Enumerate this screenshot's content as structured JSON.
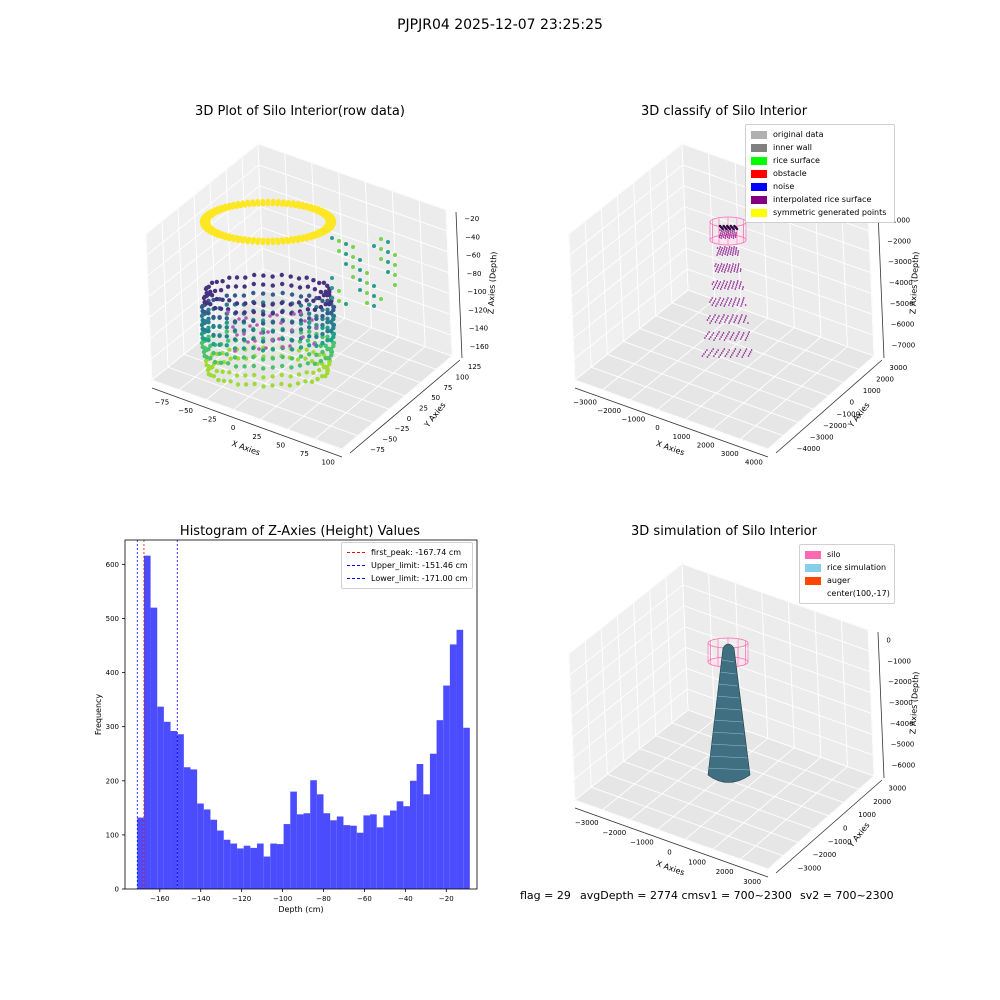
{
  "suptitle": "PJPJR04 2025-12-07 23:25:25",
  "status": {
    "flag": "flag = 29",
    "avg_depth": "avgDepth = 2774 cmsv1 = 700~2300",
    "sv2": "sv2 = 700~2300"
  },
  "plot1": {
    "title": "3D Plot of Silo Interior(row data)",
    "xlabel": "X Axies",
    "ylabel": "Y Axies",
    "zlabel": "Z Axies (Depth)",
    "xticks": [
      "−75",
      "−50",
      "−25",
      "0",
      "25",
      "50",
      "75",
      "100"
    ],
    "yticks": [
      "−75",
      "−50",
      "−25",
      "0",
      "25",
      "50",
      "75",
      "100",
      "125"
    ],
    "zticks": [
      "−20",
      "−40",
      "−60",
      "−80",
      "−100",
      "−120",
      "−140",
      "−160"
    ]
  },
  "plot2": {
    "title": "3D classify of Silo Interior",
    "xlabel": "X Axies",
    "ylabel": "Y Axies",
    "zlabel": "Z Axies (Depth)",
    "xticks": [
      "−3000",
      "−2000",
      "−1000",
      "0",
      "1000",
      "2000",
      "3000",
      "4000"
    ],
    "yticks": [
      "−4000",
      "−3000",
      "−2000",
      "−1000",
      "0",
      "1000",
      "2000",
      "3000"
    ],
    "zticks": [
      "−1000",
      "−2000",
      "−3000",
      "−4000",
      "−5000",
      "−6000",
      "−7000"
    ],
    "legend": [
      {
        "label": "original data",
        "color": "#b0b0b0"
      },
      {
        "label": "inner wall",
        "color": "#808080"
      },
      {
        "label": "rice surface",
        "color": "#00ff00"
      },
      {
        "label": "obstacle",
        "color": "#ff0000"
      },
      {
        "label": "noise",
        "color": "#0000ff"
      },
      {
        "label": "interpolated rice surface",
        "color": "#800080"
      },
      {
        "label": "symmetric generated points",
        "color": "#ffff00"
      }
    ]
  },
  "plot3": {
    "title": "3D simulation of Silo Interior",
    "xlabel": "X Axies",
    "ylabel": "Y Axies",
    "zlabel": "Z Axies (Depth)",
    "xticks": [
      "−3000",
      "−2000",
      "−1000",
      "0",
      "1000",
      "2000",
      "3000"
    ],
    "yticks": [
      "−3000",
      "−2000",
      "−1000",
      "0",
      "1000",
      "2000",
      "3000"
    ],
    "zticks": [
      "0",
      "−1000",
      "−2000",
      "−3000",
      "−4000",
      "−5000",
      "−6000"
    ],
    "legend": [
      {
        "label": "silo",
        "color": "#ff69b4"
      },
      {
        "label": "rice simulation",
        "color": "#87ceeb"
      },
      {
        "label": "auger",
        "color": "#ff4500"
      },
      {
        "label": "center(100,-17)",
        "color": ""
      }
    ]
  },
  "chart_data": {
    "type": "bar",
    "title": "Histogram of Z-Axies (Height) Values",
    "xlabel": "Depth (cm)",
    "ylabel": "Frequency",
    "xlim": [
      -177,
      -5
    ],
    "ylim": [
      0,
      645
    ],
    "xticks": [
      -160,
      -140,
      -120,
      -100,
      -80,
      -60,
      -40,
      -20
    ],
    "yticks": [
      0,
      100,
      200,
      300,
      400,
      500,
      600
    ],
    "bin_start": -171.0,
    "bin_width": 3.25,
    "values": [
      132,
      616,
      520,
      337,
      309,
      292,
      286,
      225,
      221,
      158,
      147,
      128,
      108,
      91,
      84,
      75,
      80,
      76,
      84,
      60,
      84,
      83,
      120,
      180,
      138,
      140,
      201,
      175,
      140,
      127,
      134,
      118,
      117,
      104,
      136,
      138,
      114,
      136,
      145,
      162,
      153,
      200,
      231,
      175,
      250,
      312,
      376,
      452,
      479,
      298
    ],
    "bar_color": "#4c4cff",
    "vlines": [
      {
        "label": "first_peak: -167.74 cm",
        "x": -167.74,
        "color": "#ff0000"
      },
      {
        "label": "Upper_limit: -151.46 cm",
        "x": -151.46,
        "color": "#0000ff"
      },
      {
        "label": "Lower_limit: -171.00 cm",
        "x": -171.0,
        "color": "#0000ff"
      }
    ],
    "legend_position": "top-right"
  }
}
